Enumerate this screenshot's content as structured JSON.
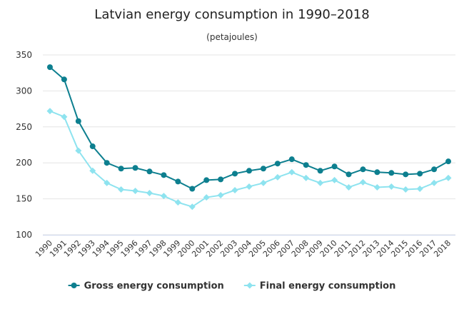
{
  "chart_data": {
    "type": "line",
    "title": "Latvian energy consumption in 1990–2018",
    "subtitle": "(petajoules)",
    "xlabel": "",
    "ylabel": "",
    "ylim": [
      100,
      350
    ],
    "yticks": [
      100,
      150,
      200,
      250,
      300,
      350
    ],
    "grid": true,
    "legend_position": "bottom",
    "x": [
      "1990",
      "1991",
      "1992",
      "1993",
      "1994",
      "1995",
      "1996",
      "1997",
      "1998",
      "1999",
      "2000",
      "2001",
      "2002",
      "2003",
      "2004",
      "2005",
      "2006",
      "2007",
      "2008",
      "2009",
      "2010",
      "2011",
      "2012",
      "2013",
      "2014",
      "2015",
      "2016",
      "2017",
      "2018"
    ],
    "series": [
      {
        "name": "Gross energy consumption",
        "color": "#0d7f8f",
        "marker": "circle",
        "values": [
          333,
          316,
          258,
          223,
          200,
          192,
          193,
          188,
          183,
          174,
          164,
          176,
          177,
          185,
          189,
          192,
          199,
          205,
          197,
          189,
          195,
          184,
          191,
          187,
          186,
          184,
          185,
          191,
          202
        ]
      },
      {
        "name": "Final energy consumption",
        "color": "#8ee3ef",
        "marker": "diamond",
        "values": [
          272,
          264,
          217,
          189,
          172,
          163,
          161,
          158,
          154,
          145,
          139,
          152,
          155,
          162,
          167,
          172,
          180,
          187,
          179,
          172,
          176,
          166,
          173,
          166,
          167,
          163,
          164,
          172,
          179
        ]
      }
    ]
  }
}
